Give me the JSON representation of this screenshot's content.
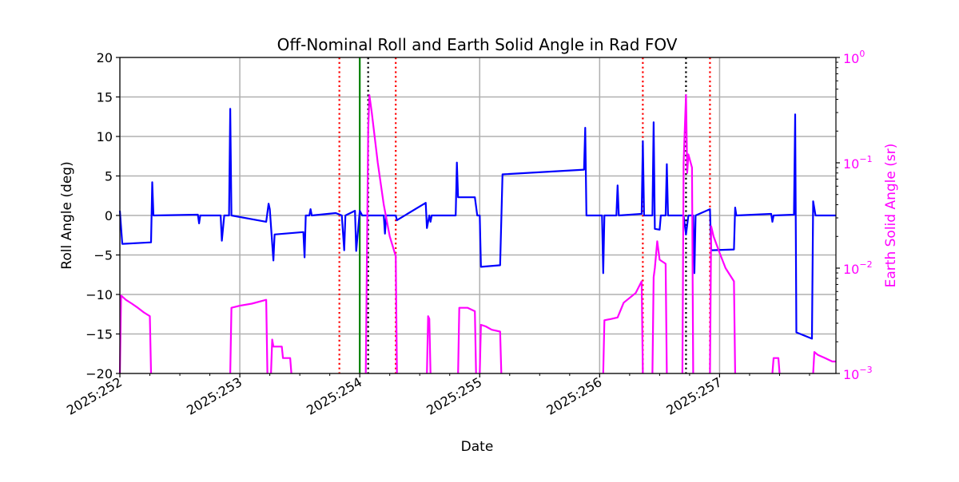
{
  "chart_data": {
    "type": "line",
    "title": "Off-Nominal Roll and Earth Solid Angle in Rad FOV",
    "xlabel": "Date",
    "ylabel": "Roll Angle (deg)",
    "y2label": "Earth Solid Angle (sr)",
    "x_unit": "day of year 2025 (YYYY:DDD)",
    "xlim": [
      252.0,
      257.97
    ],
    "ylim": [
      -20,
      20
    ],
    "y2lim": [
      0.001,
      1
    ],
    "y2_scale": "log",
    "grid": true,
    "x_ticks": [
      {
        "value": 252,
        "label": "2025:252"
      },
      {
        "value": 253,
        "label": "2025:253"
      },
      {
        "value": 254,
        "label": "2025:254"
      },
      {
        "value": 255,
        "label": "2025:255"
      },
      {
        "value": 256,
        "label": "2025:256"
      },
      {
        "value": 257,
        "label": "2025:257"
      }
    ],
    "y_ticks": [
      {
        "value": 20,
        "label": "20"
      },
      {
        "value": 15,
        "label": "15"
      },
      {
        "value": 10,
        "label": "10"
      },
      {
        "value": 5,
        "label": "5"
      },
      {
        "value": 0,
        "label": "0"
      },
      {
        "value": -5,
        "label": "−5"
      },
      {
        "value": -10,
        "label": "−10"
      },
      {
        "value": -15,
        "label": "−15"
      },
      {
        "value": -20,
        "label": "−20"
      }
    ],
    "y2_ticks": [
      {
        "value": 1,
        "label": "10",
        "exp": "0"
      },
      {
        "value": 0.1,
        "label": "10",
        "exp": "−1"
      },
      {
        "value": 0.01,
        "label": "10",
        "exp": "−2"
      },
      {
        "value": 0.001,
        "label": "10",
        "exp": "−3"
      }
    ],
    "colors": {
      "roll": "#0000ff",
      "earth": "#ff00ff",
      "red_vline": "#ff0000",
      "black_vline": "#000000",
      "green_vline": "#008000",
      "grid": "#b0b0b0",
      "y2_axis": "#ff00ff"
    },
    "vlines": [
      {
        "x": 253.83,
        "color": "red",
        "style": "dotted"
      },
      {
        "x": 254.0,
        "color": "green",
        "style": "solid"
      },
      {
        "x": 254.07,
        "color": "black",
        "style": "dotted"
      },
      {
        "x": 254.3,
        "color": "red",
        "style": "dotted"
      },
      {
        "x": 256.36,
        "color": "red",
        "style": "dotted"
      },
      {
        "x": 256.72,
        "color": "black",
        "style": "dotted"
      },
      {
        "x": 256.92,
        "color": "red",
        "style": "dotted"
      }
    ],
    "series": [
      {
        "key": "roll",
        "axis": "left",
        "points": [
          [
            252.0,
            0.6
          ],
          [
            252.02,
            -3.6
          ],
          [
            252.26,
            -3.4
          ],
          [
            252.27,
            4.2
          ],
          [
            252.28,
            0.0
          ],
          [
            252.65,
            0.1
          ],
          [
            252.66,
            -1.0
          ],
          [
            252.67,
            0.0
          ],
          [
            252.84,
            0.0
          ],
          [
            252.85,
            -3.2
          ],
          [
            252.87,
            0.0
          ],
          [
            252.91,
            0.0
          ],
          [
            252.92,
            13.5
          ],
          [
            252.93,
            0.0
          ],
          [
            253.22,
            -0.8
          ],
          [
            253.24,
            1.5
          ],
          [
            253.25,
            0.8
          ],
          [
            253.28,
            -5.7
          ],
          [
            253.29,
            -2.4
          ],
          [
            253.53,
            -2.1
          ],
          [
            253.54,
            -5.3
          ],
          [
            253.55,
            0.0
          ],
          [
            253.58,
            0.0
          ],
          [
            253.59,
            0.8
          ],
          [
            253.6,
            0.0
          ],
          [
            253.8,
            0.3
          ],
          [
            253.85,
            0.0
          ],
          [
            253.87,
            -4.4
          ],
          [
            253.88,
            0.0
          ],
          [
            253.96,
            0.6
          ],
          [
            253.97,
            -4.5
          ],
          [
            254.0,
            0.6
          ],
          [
            254.02,
            0.0
          ],
          [
            254.06,
            0.0
          ],
          [
            254.2,
            0.0
          ],
          [
            254.21,
            -2.3
          ],
          [
            254.22,
            0.0
          ],
          [
            254.3,
            0.0
          ],
          [
            254.31,
            -0.6
          ],
          [
            254.55,
            1.6
          ],
          [
            254.56,
            -1.6
          ],
          [
            254.58,
            0.0
          ],
          [
            254.59,
            -0.8
          ],
          [
            254.6,
            0.0
          ],
          [
            254.8,
            0.0
          ],
          [
            254.81,
            6.7
          ],
          [
            254.82,
            2.3
          ],
          [
            254.96,
            2.3
          ],
          [
            254.98,
            0.0
          ],
          [
            255.0,
            0.0
          ],
          [
            255.01,
            -6.5
          ],
          [
            255.17,
            -6.3
          ],
          [
            255.19,
            5.2
          ],
          [
            255.87,
            5.8
          ],
          [
            255.88,
            11.1
          ],
          [
            255.89,
            0.0
          ],
          [
            256.02,
            0.0
          ],
          [
            256.03,
            -7.3
          ],
          [
            256.04,
            0.0
          ],
          [
            256.14,
            0.0
          ],
          [
            256.15,
            3.8
          ],
          [
            256.16,
            0.0
          ],
          [
            256.35,
            0.2
          ],
          [
            256.36,
            9.4
          ],
          [
            256.37,
            0.0
          ],
          [
            256.44,
            0.0
          ],
          [
            256.45,
            11.8
          ],
          [
            256.46,
            -1.7
          ],
          [
            256.5,
            -1.8
          ],
          [
            256.51,
            0.0
          ],
          [
            256.55,
            0.0
          ],
          [
            256.56,
            6.5
          ],
          [
            256.57,
            0.0
          ],
          [
            256.7,
            0.0
          ],
          [
            256.72,
            -2.4
          ],
          [
            256.74,
            0.0
          ],
          [
            256.78,
            0.0
          ],
          [
            256.79,
            -7.3
          ],
          [
            256.8,
            0.0
          ],
          [
            256.92,
            0.8
          ],
          [
            256.93,
            -4.4
          ],
          [
            257.12,
            -4.3
          ],
          [
            257.13,
            1.0
          ],
          [
            257.14,
            0.0
          ],
          [
            257.43,
            0.2
          ],
          [
            257.44,
            -0.8
          ],
          [
            257.45,
            0.0
          ],
          [
            257.62,
            0.1
          ],
          [
            257.63,
            12.8
          ],
          [
            257.64,
            -14.8
          ],
          [
            257.77,
            -15.6
          ],
          [
            257.78,
            1.8
          ],
          [
            257.8,
            0.0
          ],
          [
            257.97,
            0.0
          ]
        ]
      },
      {
        "key": "earth",
        "axis": "right",
        "segments": [
          [
            [
              252.0,
              0.001
            ],
            [
              252.01,
              0.0055
            ],
            [
              252.05,
              0.005
            ],
            [
              252.1,
              0.0046
            ],
            [
              252.15,
              0.0042
            ],
            [
              252.2,
              0.0038
            ],
            [
              252.25,
              0.0035
            ],
            [
              252.26,
              0.001
            ]
          ],
          [
            [
              252.92,
              0.001
            ],
            [
              252.93,
              0.0042
            ],
            [
              253.0,
              0.0044
            ],
            [
              253.1,
              0.0046
            ],
            [
              253.22,
              0.005
            ],
            [
              253.23,
              0.001
            ]
          ],
          [
            [
              253.26,
              0.001
            ],
            [
              253.27,
              0.0021
            ],
            [
              253.28,
              0.0018
            ],
            [
              253.35,
              0.0018
            ],
            [
              253.36,
              0.0014
            ],
            [
              253.42,
              0.0014
            ],
            [
              253.43,
              0.001
            ]
          ],
          [
            [
              254.05,
              0.001
            ],
            [
              254.07,
              0.2
            ],
            [
              254.08,
              0.44
            ],
            [
              254.1,
              0.3
            ],
            [
              254.15,
              0.1
            ],
            [
              254.2,
              0.04
            ],
            [
              254.25,
              0.02
            ],
            [
              254.3,
              0.013
            ],
            [
              254.31,
              0.001
            ]
          ],
          [
            [
              254.56,
              0.001
            ],
            [
              254.57,
              0.0035
            ],
            [
              254.58,
              0.0033
            ],
            [
              254.59,
              0.001
            ]
          ],
          [
            [
              254.82,
              0.001
            ],
            [
              254.83,
              0.0042
            ],
            [
              254.9,
              0.0042
            ],
            [
              254.96,
              0.0039
            ],
            [
              254.97,
              0.001
            ]
          ],
          [
            [
              255.0,
              0.001
            ],
            [
              255.01,
              0.0029
            ],
            [
              255.05,
              0.0028
            ],
            [
              255.1,
              0.0026
            ],
            [
              255.17,
              0.0025
            ],
            [
              255.18,
              0.001
            ]
          ],
          [
            [
              256.03,
              0.001
            ],
            [
              256.04,
              0.0032
            ],
            [
              256.1,
              0.0033
            ],
            [
              256.15,
              0.0034
            ],
            [
              256.2,
              0.0047
            ],
            [
              256.3,
              0.0058
            ],
            [
              256.35,
              0.0075
            ],
            [
              256.36,
              0.001
            ]
          ],
          [
            [
              256.44,
              0.001
            ],
            [
              256.45,
              0.0082
            ],
            [
              256.46,
              0.01
            ],
            [
              256.48,
              0.018
            ],
            [
              256.5,
              0.012
            ],
            [
              256.55,
              0.011
            ],
            [
              256.56,
              0.001
            ]
          ],
          [
            [
              256.69,
              0.001
            ],
            [
              256.7,
              0.1
            ],
            [
              256.72,
              0.44
            ],
            [
              256.73,
              0.08
            ],
            [
              256.74,
              0.12
            ],
            [
              256.77,
              0.09
            ],
            [
              256.78,
              0.001
            ]
          ],
          [
            [
              256.92,
              0.001
            ],
            [
              256.93,
              0.025
            ],
            [
              256.95,
              0.02
            ],
            [
              257.0,
              0.014
            ],
            [
              257.05,
              0.01
            ],
            [
              257.12,
              0.0075
            ],
            [
              257.13,
              0.001
            ]
          ],
          [
            [
              257.44,
              0.001
            ],
            [
              257.45,
              0.0014
            ],
            [
              257.49,
              0.0014
            ],
            [
              257.5,
              0.001
            ]
          ],
          [
            [
              257.78,
              0.001
            ],
            [
              257.79,
              0.0016
            ],
            [
              257.82,
              0.0015
            ],
            [
              257.88,
              0.0014
            ],
            [
              257.94,
              0.0013
            ],
            [
              257.97,
              0.0013
            ]
          ]
        ]
      }
    ]
  }
}
